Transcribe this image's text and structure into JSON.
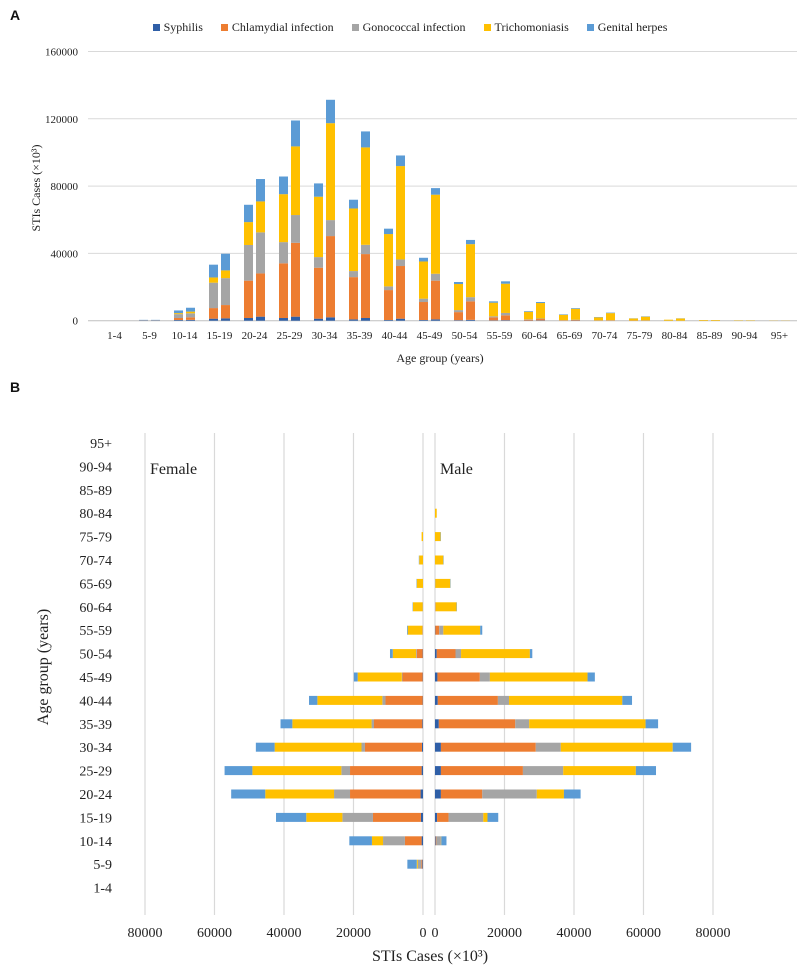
{
  "colors": {
    "Syphilis": "#2f5fa7",
    "Chlamydial infection": "#ed7d31",
    "Gonococcal infection": "#a5a5a5",
    "Trichomoniasis": "#ffc000",
    "Genital herpes": "#5b9bd5"
  },
  "chart_data": [
    {
      "panel_label": "A",
      "type": "bar",
      "stacked": true,
      "legend": [
        "Syphilis",
        "Chlamydial infection",
        "Gonococcal infection",
        "Trichomoniasis",
        "Genital herpes"
      ],
      "legend_position": "top",
      "xlabel": "Age group (years)",
      "ylabel": "STIs Cases (×10³)",
      "ylim": [
        0,
        160000
      ],
      "yticks": [
        "0",
        "40000",
        "80000",
        "120000",
        "160000"
      ],
      "grid": true,
      "categories": [
        "1-4",
        "5-9",
        "10-14",
        "15-19",
        "20-24",
        "25-29",
        "30-34",
        "35-39",
        "40-44",
        "45-49",
        "50-54",
        "55-59",
        "60-64",
        "65-69",
        "70-74",
        "75-79",
        "80-84",
        "85-89",
        "90-94",
        "95+"
      ],
      "bars": [
        [
          [
            0,
            0,
            0,
            0,
            0
          ],
          [
            0,
            0,
            0,
            0,
            0
          ]
        ],
        [
          [
            100,
            100,
            100,
            0,
            200
          ],
          [
            100,
            100,
            100,
            0,
            200
          ]
        ],
        [
          [
            400,
            1200,
            2300,
            600,
            1600
          ],
          [
            500,
            1500,
            2400,
            1000,
            2300
          ]
        ],
        [
          [
            1200,
            6300,
            15100,
            3100,
            7600
          ],
          [
            1400,
            7900,
            16000,
            4600,
            9900
          ]
        ],
        [
          [
            1600,
            22200,
            21200,
            13600,
            10300
          ],
          [
            2400,
            25700,
            24400,
            18400,
            13300
          ]
        ],
        [
          [
            1600,
            32500,
            12600,
            28500,
            10500
          ],
          [
            2400,
            43900,
            16500,
            40800,
            15400
          ]
        ],
        [
          [
            1200,
            30300,
            6300,
            35900,
            7900
          ],
          [
            2000,
            48300,
            9500,
            57600,
            13900
          ]
        ],
        [
          [
            800,
            25100,
            3600,
            37200,
            5200
          ],
          [
            1600,
            38000,
            5500,
            57900,
            9500
          ]
        ],
        [
          [
            400,
            17800,
            2200,
            31100,
            3200
          ],
          [
            1200,
            31300,
            3900,
            55500,
            6300
          ]
        ],
        [
          [
            400,
            10700,
            2000,
            22100,
            2200
          ],
          [
            800,
            23000,
            4100,
            47000,
            3900
          ]
        ],
        [
          [
            300,
            4800,
            1200,
            15500,
            1200
          ],
          [
            500,
            11000,
            2500,
            31500,
            2500
          ]
        ],
        [
          [
            200,
            1800,
            600,
            8100,
            800
          ],
          [
            300,
            2900,
            1400,
            17400,
            1400
          ]
        ],
        [
          [
            100,
            500,
            200,
            4500,
            400
          ],
          [
            200,
            800,
            300,
            9200,
            600
          ]
        ],
        [
          [
            0,
            200,
            100,
            3200,
            300
          ],
          [
            100,
            300,
            200,
            6500,
            400
          ]
        ],
        [
          [
            0,
            100,
            100,
            1800,
            200
          ],
          [
            0,
            200,
            100,
            4200,
            300
          ]
        ],
        [
          [
            0,
            100,
            0,
            1200,
            100
          ],
          [
            0,
            100,
            100,
            2200,
            200
          ]
        ],
        [
          [
            0,
            0,
            0,
            600,
            0
          ],
          [
            0,
            0,
            0,
            1300,
            100
          ]
        ],
        [
          [
            0,
            0,
            0,
            400,
            0
          ],
          [
            0,
            0,
            0,
            400,
            0
          ]
        ],
        [
          [
            0,
            0,
            0,
            200,
            0
          ],
          [
            0,
            0,
            0,
            200,
            0
          ]
        ],
        [
          [
            0,
            0,
            0,
            100,
            0
          ],
          [
            0,
            0,
            0,
            100,
            0
          ]
        ]
      ]
    },
    {
      "panel_label": "B",
      "type": "bar",
      "orientation": "horizontal",
      "stacked": true,
      "xlabel": "STIs Cases (×10³)",
      "ylabel": "Age group (years)",
      "xlim": [
        -80000,
        80000
      ],
      "xticks_left": [
        "80000",
        "60000",
        "40000",
        "20000",
        "0"
      ],
      "xticks_right": [
        "0",
        "20000",
        "40000",
        "60000",
        "80000"
      ],
      "grid": true,
      "side_labels": {
        "female": "Female",
        "male": "Male"
      },
      "categories": [
        "1-4",
        "5-9",
        "10-14",
        "15-19",
        "20-24",
        "25-29",
        "30-34",
        "35-39",
        "40-44",
        "45-49",
        "50-54",
        "55-59",
        "60-64",
        "65-69",
        "70-74",
        "75-79",
        "80-84",
        "85-89",
        "90-94",
        "95+"
      ],
      "series_order": [
        "Syphilis",
        "Chlamydial infection",
        "Gonococcal infection",
        "Trichomoniasis",
        "Genital herpes"
      ],
      "female": [
        [
          0,
          0,
          0,
          0,
          0
        ],
        [
          200,
          300,
          1000,
          300,
          2700
        ],
        [
          400,
          4800,
          6300,
          3200,
          6500
        ],
        [
          600,
          13800,
          8800,
          10400,
          8700
        ],
        [
          700,
          20300,
          4600,
          19800,
          9800
        ],
        [
          400,
          20600,
          2500,
          25600,
          8000
        ],
        [
          300,
          16400,
          1000,
          25000,
          5400
        ],
        [
          200,
          13900,
          700,
          22800,
          3400
        ],
        [
          100,
          10700,
          900,
          18700,
          2400
        ],
        [
          100,
          5800,
          200,
          12700,
          1100
        ],
        [
          100,
          1700,
          200,
          6700,
          800
        ],
        [
          0,
          100,
          100,
          4200,
          200
        ],
        [
          0,
          0,
          100,
          2800,
          100
        ],
        [
          0,
          0,
          0,
          1800,
          100
        ],
        [
          0,
          0,
          0,
          1100,
          100
        ],
        [
          0,
          0,
          0,
          400,
          0
        ],
        [
          0,
          0,
          0,
          0,
          0
        ],
        [
          0,
          0,
          0,
          0,
          0
        ],
        [
          0,
          0,
          0,
          0,
          0
        ],
        [
          0,
          0,
          0,
          0,
          0
        ]
      ],
      "male": [
        [
          0,
          0,
          0,
          0,
          0
        ],
        [
          0,
          0,
          0,
          0,
          0
        ],
        [
          200,
          200,
          1300,
          100,
          1500
        ],
        [
          600,
          3300,
          10000,
          1200,
          3100
        ],
        [
          1700,
          11900,
          15700,
          7800,
          4800
        ],
        [
          1700,
          23600,
          11600,
          20900,
          5800
        ],
        [
          1700,
          27300,
          7200,
          32200,
          5300
        ],
        [
          1100,
          22000,
          4000,
          33500,
          3600
        ],
        [
          800,
          17300,
          3200,
          32600,
          2800
        ],
        [
          700,
          12200,
          2900,
          28100,
          2100
        ],
        [
          500,
          5400,
          1600,
          19800,
          700
        ],
        [
          100,
          1100,
          1200,
          10600,
          600
        ],
        [
          0,
          100,
          100,
          6000,
          100
        ],
        [
          0,
          0,
          100,
          4300,
          100
        ],
        [
          0,
          0,
          0,
          2400,
          100
        ],
        [
          0,
          0,
          0,
          1600,
          100
        ],
        [
          0,
          0,
          0,
          500,
          0
        ],
        [
          0,
          0,
          0,
          0,
          0
        ],
        [
          0,
          0,
          0,
          0,
          0
        ],
        [
          0,
          0,
          0,
          0,
          0
        ]
      ]
    }
  ]
}
